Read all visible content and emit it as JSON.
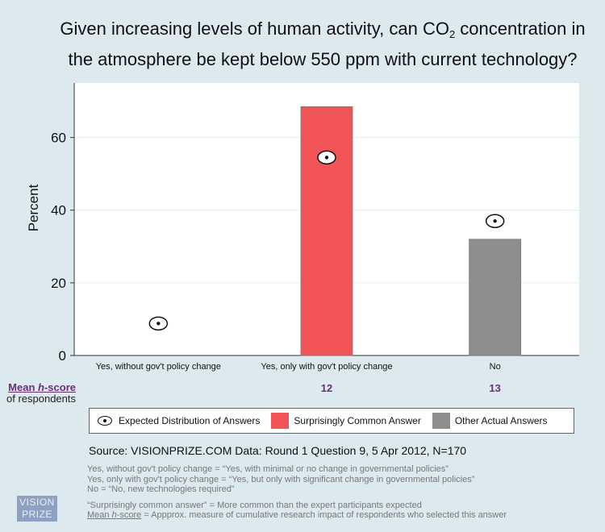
{
  "title": {
    "line1": "Given increasing levels of human activity, can CO",
    "subscript": "2",
    "line1_end": " concentration in",
    "line2": "the atmosphere be kept below 550 ppm with current technology?"
  },
  "chart_data": {
    "type": "bar",
    "ylabel": "Percent",
    "xlabel": "",
    "ylim": [
      0,
      75
    ],
    "yticks": [
      0,
      20,
      40,
      60
    ],
    "grid": true,
    "categories": [
      "Yes, without gov't policy change",
      "Yes, only with gov't policy change",
      "No"
    ],
    "values": [
      0,
      68.5,
      32
    ],
    "bar_colors": [
      "#f05457",
      "#f05457",
      "#8e8e8e"
    ],
    "expected": [
      8.8,
      54.5,
      37
    ],
    "hscores": [
      "",
      "12",
      "13"
    ]
  },
  "hscore_label": {
    "main": "Mean ",
    "italic": "h",
    "rest": "-score",
    "sub": "of respondents"
  },
  "legend": {
    "expected": "Expected Distribution of Answers",
    "surprising": "Surprisingly Common Answer",
    "other": "Other Actual Answers"
  },
  "source": "Source: VISIONPRIZE.COM  Data: Round 1 Question 9,  5 Apr 2012, N=170",
  "notes": {
    "n1": "Yes, without gov't policy change = “Yes, with minimal or no change in governmental policies”",
    "n2": "Yes, only with gov't policy change = “Yes, but only with significant change in governmental policies”",
    "n3": "No = “No, new technologies required”",
    "n4": "“Surprisingly common answer” = More common than the expert participants expected",
    "n5_link_a": "Mean ",
    "n5_link_i": "h",
    "n5_link_b": "-score",
    "n5_rest": " = Appprox. measure of cumulative research impact of respondents who selected this answer"
  },
  "logo": {
    "line1": "VISION",
    "line2": "PRIZE"
  }
}
